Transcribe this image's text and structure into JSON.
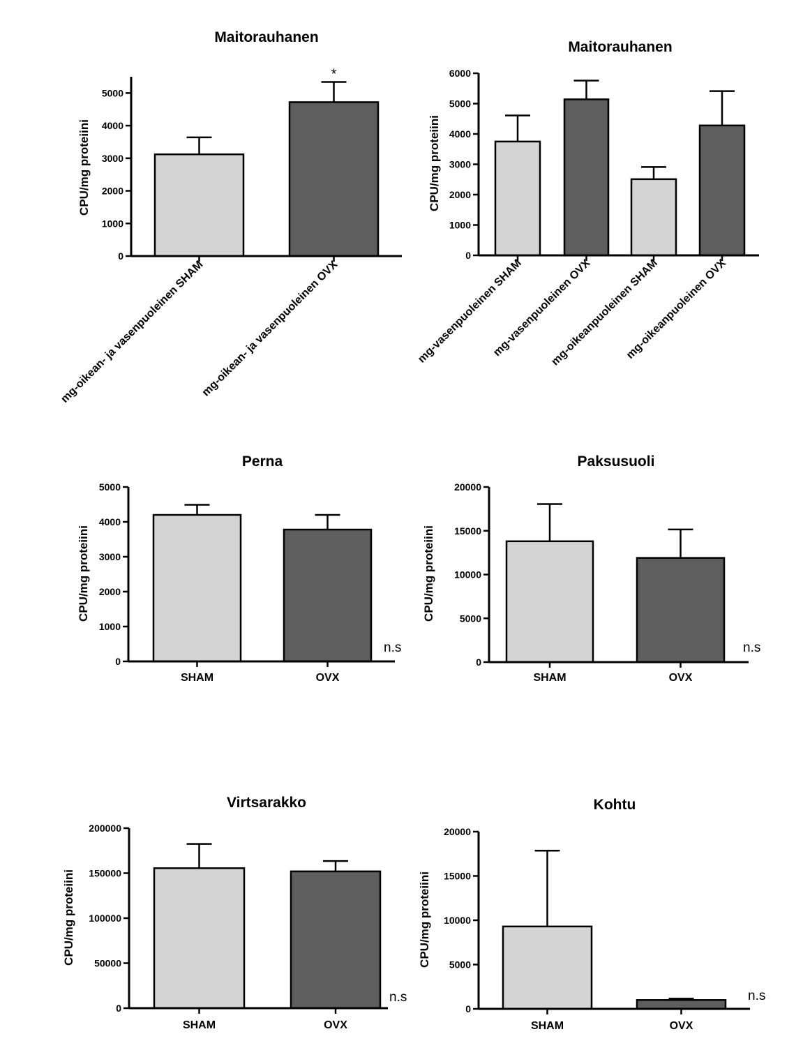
{
  "colors": {
    "light": "#d4d4d4",
    "dark": "#5e5e5e",
    "stroke": "#000000"
  },
  "chart_data": [
    {
      "type": "bar",
      "title": "Maitorauhanen",
      "ylabel": "CPU/mg proteiini",
      "xlabel": "",
      "ylim": [
        0,
        5500
      ],
      "yticks": [
        0,
        1000,
        2000,
        3000,
        4000,
        5000
      ],
      "categories": [
        "mg-oikean- ja vasenpuoleinen SHAM",
        "mg-oikean- ja vasenpuoleinen OVX"
      ],
      "values": [
        3120,
        4720
      ],
      "errors": [
        520,
        620
      ],
      "bar_colors": [
        "light",
        "dark"
      ],
      "annotations": [
        "",
        "*"
      ],
      "note": ""
    },
    {
      "type": "bar",
      "title": "Maitorauhanen",
      "ylabel": "CPU/mg proteiini",
      "xlabel": "",
      "ylim": [
        0,
        6000
      ],
      "yticks": [
        0,
        1000,
        2000,
        3000,
        4000,
        5000,
        6000
      ],
      "categories": [
        "mg-vasenpuoleinen SHAM",
        "mg-vasenpuoleinen OVX",
        "mg-oikeanpuoleinen SHAM",
        "mg-oikeanpuoleinen OVX"
      ],
      "values": [
        3750,
        5140,
        2510,
        4280
      ],
      "errors": [
        860,
        620,
        400,
        1130
      ],
      "bar_colors": [
        "light",
        "dark",
        "light",
        "dark"
      ],
      "annotations": [
        "",
        "",
        "",
        ""
      ],
      "note": ""
    },
    {
      "type": "bar",
      "title": "Perna",
      "ylabel": "CPU/mg proteiini",
      "xlabel": "",
      "ylim": [
        0,
        5000
      ],
      "yticks": [
        0,
        1000,
        2000,
        3000,
        4000,
        5000
      ],
      "categories": [
        "SHAM",
        "OVX"
      ],
      "values": [
        4200,
        3780
      ],
      "errors": [
        290,
        420
      ],
      "bar_colors": [
        "light",
        "dark"
      ],
      "annotations": [
        "",
        ""
      ],
      "note": "n.s"
    },
    {
      "type": "bar",
      "title": "Paksusuoli",
      "ylabel": "CPU/mg proteiini",
      "xlabel": "",
      "ylim": [
        0,
        20000
      ],
      "yticks": [
        0,
        5000,
        10000,
        15000,
        20000
      ],
      "categories": [
        "SHAM",
        "OVX"
      ],
      "values": [
        13800,
        11900
      ],
      "errors": [
        4250,
        3250
      ],
      "bar_colors": [
        "light",
        "dark"
      ],
      "annotations": [
        "",
        ""
      ],
      "note": "n.s"
    },
    {
      "type": "bar",
      "title": "Virtsarakko",
      "ylabel": "CPU/mg proteiini",
      "xlabel": "",
      "ylim": [
        0,
        200000
      ],
      "yticks": [
        0,
        50000,
        100000,
        150000,
        200000
      ],
      "categories": [
        "SHAM",
        "OVX"
      ],
      "values": [
        155500,
        152000
      ],
      "errors": [
        27000,
        11500
      ],
      "bar_colors": [
        "light",
        "dark"
      ],
      "annotations": [
        "",
        ""
      ],
      "note": "n.s"
    },
    {
      "type": "bar",
      "title": "Kohtu",
      "ylabel": "CPU/mg proteiini",
      "xlabel": "",
      "ylim": [
        0,
        20000
      ],
      "yticks": [
        0,
        5000,
        10000,
        15000,
        20000
      ],
      "categories": [
        "SHAM",
        "OVX"
      ],
      "values": [
        9300,
        1000
      ],
      "errors": [
        8550,
        150
      ],
      "bar_colors": [
        "light",
        "dark"
      ],
      "annotations": [
        "",
        ""
      ],
      "note": "n.s"
    }
  ]
}
